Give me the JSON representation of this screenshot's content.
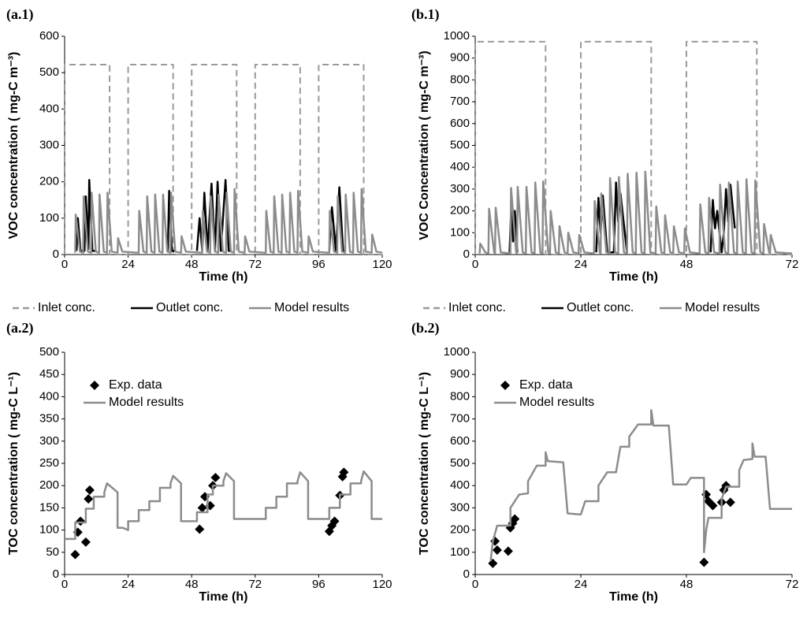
{
  "chart_data": [
    {
      "type": "line",
      "label": "(a.1)",
      "ylabel": "VOC concentration ( mg-C m⁻³)",
      "xlabel": "Time (h)",
      "xlim": [
        0,
        120
      ],
      "xticks": [
        0,
        24,
        48,
        72,
        96,
        120
      ],
      "ylim": [
        0,
        600
      ],
      "yticks": [
        0,
        100,
        200,
        300,
        400,
        500,
        600
      ],
      "legend": "bottom",
      "series": [
        {
          "name": "Inlet conc.",
          "color": "#9a9a9a",
          "line_style": "dashed",
          "x": [
            0,
            0,
            17,
            17,
            24,
            24,
            41,
            41,
            48,
            48,
            65,
            65,
            72,
            72,
            89,
            89,
            96,
            96,
            113,
            113,
            120
          ],
          "values": [
            0,
            522,
            522,
            0,
            0,
            522,
            522,
            0,
            0,
            522,
            522,
            0,
            0,
            522,
            522,
            0,
            0,
            522,
            522,
            0,
            0
          ]
        },
        {
          "name": "Outlet conc.",
          "color": "#000000",
          "line_style": "solid",
          "x": [
            4.5,
            5,
            6,
            7.5,
            8,
            9,
            9.3,
            10.5,
            12,
            null,
            39,
            39.5,
            40.5,
            42,
            null,
            50,
            51,
            52,
            52.8,
            54,
            55.5,
            56.8,
            57.8,
            59,
            60.8,
            62,
            63,
            null,
            100,
            101,
            102.5,
            103.8,
            105.2,
            106
          ],
          "values": [
            10,
            100,
            10,
            10,
            160,
            15,
            205,
            10,
            10,
            null,
            10,
            175,
            10,
            10,
            null,
            10,
            100,
            10,
            170,
            10,
            195,
            10,
            200,
            10,
            205,
            10,
            10,
            null,
            10,
            130,
            10,
            185,
            10,
            10
          ]
        },
        {
          "name": "Model results",
          "color": "#8c8c8c",
          "line_style": "solid",
          "x": [
            4,
            4.2,
            5.8,
            7,
            7.2,
            8.8,
            10,
            10.2,
            11.8,
            13,
            13.2,
            14.8,
            16,
            16.2,
            17.8,
            20,
            20.2,
            21.8,
            28,
            28.2,
            29.8,
            31,
            31.2,
            32.8,
            34,
            34.2,
            35.8,
            37,
            37.2,
            38.8,
            40,
            40.2,
            41.8,
            44,
            44.2,
            45.8,
            52,
            52.2,
            53.8,
            55,
            55.2,
            56.8,
            58,
            58.2,
            59.8,
            61,
            61.2,
            62.8,
            64,
            64.2,
            65.8,
            68,
            68.2,
            69.8,
            76,
            76.2,
            77.8,
            79,
            79.2,
            80.8,
            82,
            82.2,
            83.8,
            85,
            85.2,
            86.8,
            88,
            88.2,
            89.8,
            92,
            92.2,
            93.8,
            100,
            100.2,
            101.8,
            103,
            103.2,
            104.8,
            106,
            106.2,
            107.8,
            109,
            109.2,
            110.8,
            112,
            112.2,
            113.8,
            116,
            116.2,
            117.8,
            120
          ],
          "values": [
            5,
            110,
            8,
            5,
            160,
            8,
            5,
            170,
            8,
            5,
            165,
            8,
            5,
            170,
            8,
            5,
            45,
            8,
            5,
            120,
            8,
            5,
            160,
            8,
            5,
            165,
            8,
            5,
            165,
            8,
            5,
            170,
            8,
            5,
            50,
            8,
            5,
            120,
            8,
            5,
            160,
            8,
            5,
            165,
            8,
            5,
            170,
            8,
            5,
            180,
            8,
            5,
            50,
            8,
            5,
            120,
            8,
            5,
            160,
            8,
            5,
            165,
            8,
            5,
            170,
            8,
            5,
            175,
            8,
            5,
            50,
            8,
            5,
            120,
            8,
            5,
            160,
            8,
            5,
            165,
            8,
            5,
            170,
            8,
            5,
            180,
            8,
            5,
            55,
            8,
            5
          ]
        }
      ]
    },
    {
      "type": "line",
      "label": "(b.1)",
      "ylabel": "VOC Concentration ( mg-C m⁻³)",
      "xlabel": "Time (h)",
      "xlim": [
        0,
        72
      ],
      "xticks": [
        0,
        24,
        48,
        72
      ],
      "ylim": [
        0,
        1000
      ],
      "yticks": [
        0,
        100,
        200,
        300,
        400,
        500,
        600,
        700,
        800,
        900,
        1000
      ],
      "legend": "bottom",
      "series": [
        {
          "name": "Inlet conc.",
          "color": "#9a9a9a",
          "line_style": "dashed",
          "x": [
            0,
            0,
            16,
            16,
            24,
            24,
            40,
            40,
            48,
            48,
            64,
            64,
            72
          ],
          "values": [
            0,
            975,
            975,
            0,
            0,
            975,
            975,
            0,
            0,
            975,
            975,
            0,
            0
          ]
        },
        {
          "name": "Outlet conc.",
          "color": "#000000",
          "line_style": "solid",
          "x": [
            7.8,
            8.2,
            8.6,
            9,
            9.6,
            null,
            27.5,
            28,
            28.5,
            29,
            30,
            31.5,
            32,
            32.5,
            33,
            34.5,
            null,
            53.5,
            54,
            54.5,
            55,
            56,
            56.5,
            57,
            57.5,
            58,
            59
          ],
          "values": [
            10,
            220,
            60,
            200,
            10,
            null,
            10,
            260,
            100,
            270,
            10,
            10,
            330,
            150,
            280,
            10,
            null,
            10,
            250,
            120,
            200,
            10,
            100,
            300,
            150,
            320,
            120
          ]
        },
        {
          "name": "Model results",
          "color": "#8c8c8c",
          "line_style": "solid",
          "x": [
            1,
            1.15,
            2.3,
            3,
            3.15,
            4.3,
            4.5,
            4.65,
            5.8,
            8,
            8.15,
            9.3,
            9.5,
            9.65,
            10.8,
            11.5,
            11.65,
            12.8,
            13.5,
            13.65,
            14.8,
            15.3,
            15.45,
            16.6,
            17,
            17.15,
            18.3,
            19,
            19.15,
            20.3,
            21,
            21.15,
            22.3,
            23.5,
            23.65,
            24.8,
            27,
            27.15,
            28.3,
            28.5,
            28.65,
            29.8,
            30.5,
            30.65,
            31.8,
            32.5,
            32.65,
            33.8,
            34.5,
            34.65,
            35.8,
            36.5,
            36.65,
            37.8,
            38.5,
            38.65,
            39.8,
            41,
            41.15,
            42.3,
            43,
            43.15,
            44.3,
            45,
            45.15,
            46.3,
            47.5,
            47.65,
            48.8,
            51,
            51.15,
            52.3,
            53,
            53.15,
            54.3,
            55.5,
            55.65,
            56.8,
            57.5,
            57.65,
            58.8,
            59.5,
            59.65,
            60.8,
            61.5,
            61.65,
            62.8,
            63.5,
            63.65,
            64.8,
            65.5,
            65.65,
            66.8,
            67,
            67.15,
            68.3,
            72
          ],
          "values": [
            5,
            50,
            10,
            5,
            210,
            10,
            5,
            215,
            10,
            5,
            305,
            10,
            5,
            310,
            10,
            5,
            310,
            10,
            5,
            330,
            10,
            5,
            335,
            10,
            5,
            200,
            10,
            5,
            130,
            10,
            5,
            100,
            10,
            5,
            90,
            10,
            5,
            245,
            10,
            5,
            280,
            10,
            5,
            350,
            10,
            5,
            355,
            10,
            5,
            370,
            10,
            5,
            375,
            10,
            5,
            380,
            10,
            5,
            220,
            10,
            5,
            180,
            10,
            5,
            130,
            10,
            5,
            120,
            10,
            5,
            230,
            10,
            5,
            260,
            10,
            5,
            320,
            10,
            5,
            330,
            10,
            5,
            335,
            10,
            5,
            345,
            10,
            5,
            340,
            10,
            5,
            140,
            10,
            5,
            90,
            10,
            5
          ]
        }
      ]
    },
    {
      "type": "line",
      "label": "(a.2)",
      "ylabel": "TOC concentration ( mg-C L⁻¹)",
      "xlabel": "Time (h)",
      "xlim": [
        0,
        120
      ],
      "xticks": [
        0,
        24,
        48,
        72,
        96,
        120
      ],
      "ylim": [
        0,
        500
      ],
      "yticks": [
        0,
        50,
        100,
        150,
        200,
        250,
        300,
        350,
        400,
        450,
        500
      ],
      "legend": "upper left",
      "series": [
        {
          "name": "Exp. data",
          "type": "scatter",
          "color": "#000000",
          "marker": "diamond",
          "x": [
            4,
            5,
            6,
            8,
            9,
            9.5,
            51,
            52,
            53,
            55,
            56,
            57,
            100,
            101,
            102,
            104,
            105,
            105.5
          ],
          "values": [
            45,
            95,
            120,
            73,
            170,
            190,
            102,
            150,
            175,
            155,
            200,
            218,
            97,
            110,
            120,
            178,
            220,
            230
          ]
        },
        {
          "name": "Model results",
          "color": "#8c8c8c",
          "line_style": "solid",
          "x": [
            0,
            4,
            4,
            8,
            8,
            11,
            11,
            15,
            15,
            16,
            20,
            20,
            22,
            24,
            24,
            28,
            28,
            32,
            32,
            36,
            36,
            40,
            40,
            41,
            44,
            44,
            50,
            50,
            54,
            54,
            56,
            56,
            60,
            60,
            61,
            64,
            64,
            72,
            72,
            76,
            76,
            80,
            80,
            84,
            84,
            88,
            88,
            89,
            92,
            92,
            96,
            96,
            100,
            100,
            104,
            104,
            108,
            108,
            112,
            112,
            113,
            116,
            116,
            120
          ],
          "values": [
            80,
            80,
            117,
            117,
            148,
            148,
            175,
            175,
            185,
            205,
            185,
            105,
            105,
            100,
            120,
            120,
            145,
            145,
            165,
            165,
            195,
            195,
            205,
            222,
            205,
            120,
            120,
            140,
            140,
            180,
            180,
            200,
            200,
            210,
            228,
            210,
            125,
            125,
            125,
            125,
            150,
            150,
            175,
            175,
            205,
            205,
            210,
            230,
            210,
            125,
            125,
            125,
            125,
            150,
            150,
            180,
            180,
            205,
            205,
            210,
            232,
            210,
            125,
            125
          ]
        }
      ]
    },
    {
      "type": "line",
      "label": "(b.2)",
      "ylabel": "TOC concentration ( mg-C L⁻¹)",
      "xlabel": "Time (h)",
      "xlim": [
        0,
        72
      ],
      "xticks": [
        0,
        24,
        48,
        72
      ],
      "ylim": [
        0,
        1000
      ],
      "yticks": [
        0,
        100,
        200,
        300,
        400,
        500,
        600,
        700,
        800,
        900,
        1000
      ],
      "legend": "upper left",
      "series": [
        {
          "name": "Exp. data",
          "type": "scatter",
          "color": "#000000",
          "marker": "diamond",
          "x": [
            4,
            4.5,
            5,
            7.5,
            8,
            8.5,
            9,
            52,
            52.5,
            53,
            54,
            56,
            56.5,
            57,
            58
          ],
          "values": [
            50,
            150,
            110,
            105,
            210,
            230,
            250,
            55,
            360,
            330,
            310,
            325,
            380,
            400,
            325
          ]
        },
        {
          "name": "Model results",
          "color": "#8c8c8c",
          "line_style": "solid",
          "x": [
            3.5,
            4,
            5,
            8,
            8,
            10,
            12,
            12,
            14,
            16,
            16,
            16.5,
            20,
            21,
            24,
            25,
            28,
            28,
            30,
            32,
            33,
            35,
            35,
            37,
            40,
            40,
            40.5,
            44,
            45,
            48,
            49,
            52,
            52,
            52.5,
            53,
            56,
            56,
            57,
            60,
            60,
            61,
            63,
            63,
            63.5,
            66,
            67,
            72
          ],
          "values": [
            60,
            150,
            220,
            220,
            300,
            360,
            365,
            420,
            490,
            490,
            550,
            510,
            505,
            275,
            270,
            330,
            330,
            400,
            460,
            460,
            575,
            575,
            620,
            675,
            675,
            740,
            670,
            670,
            405,
            405,
            435,
            435,
            100,
            200,
            255,
            255,
            340,
            395,
            395,
            470,
            515,
            520,
            590,
            530,
            530,
            295,
            295
          ]
        }
      ]
    }
  ]
}
